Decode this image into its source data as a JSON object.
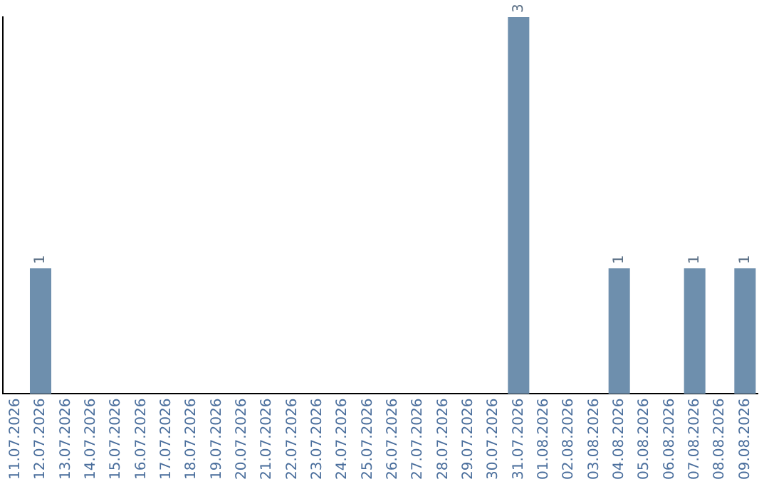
{
  "chart_data": {
    "type": "bar",
    "categories": [
      "11.07.2026",
      "12.07.2026",
      "13.07.2026",
      "14.07.2026",
      "15.07.2026",
      "16.07.2026",
      "17.07.2026",
      "18.07.2026",
      "19.07.2026",
      "20.07.2026",
      "21.07.2026",
      "22.07.2026",
      "23.07.2026",
      "24.07.2026",
      "25.07.2026",
      "26.07.2026",
      "27.07.2026",
      "28.07.2026",
      "29.07.2026",
      "30.07.2026",
      "31.07.2026",
      "01.08.2026",
      "02.08.2026",
      "03.08.2026",
      "04.08.2026",
      "05.08.2026",
      "06.08.2026",
      "07.08.2026",
      "08.08.2026",
      "09.08.2026"
    ],
    "values": [
      0,
      1,
      0,
      0,
      0,
      0,
      0,
      0,
      0,
      0,
      0,
      0,
      0,
      0,
      0,
      0,
      0,
      0,
      0,
      0,
      3,
      0,
      0,
      0,
      1,
      0,
      0,
      1,
      0,
      1
    ],
    "value_labels": [
      null,
      "1",
      null,
      null,
      null,
      null,
      null,
      null,
      null,
      null,
      null,
      null,
      null,
      null,
      null,
      null,
      null,
      null,
      null,
      null,
      "3",
      null,
      null,
      null,
      "1",
      null,
      null,
      "1",
      null,
      "1"
    ],
    "color": "#6e8fad",
    "grid": false,
    "legend": false,
    "tick_labels": "x"
  }
}
